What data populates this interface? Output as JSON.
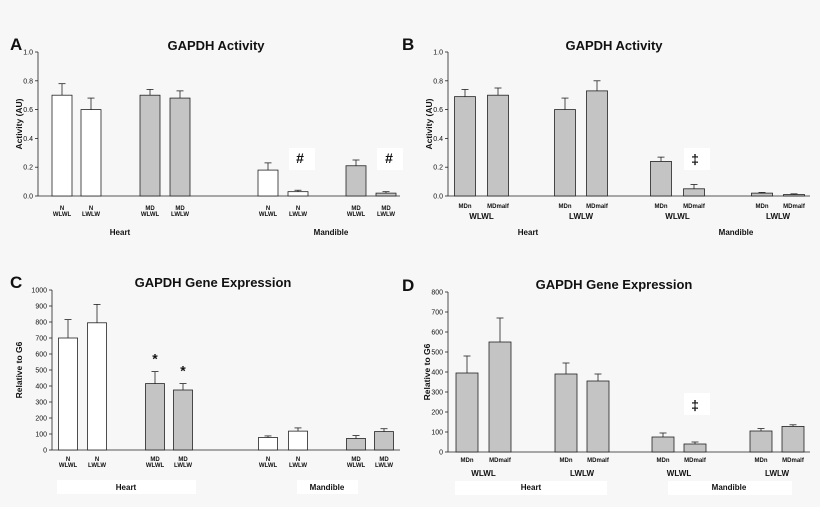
{
  "chart_data": [
    {
      "id": "A",
      "type": "bar",
      "panel_letter": "A",
      "title": "GAPDH Activity",
      "ylabel": "Activity (AU)",
      "ylim": [
        0,
        1.0
      ],
      "yticks": [
        "0.0",
        "0.2",
        "0.4",
        "0.6",
        "0.8",
        "1.0"
      ],
      "bars": [
        {
          "label": [
            "N",
            "WLWL"
          ],
          "value": 0.7,
          "err": 0.08,
          "fill": "white"
        },
        {
          "label": [
            "N",
            "LWLW"
          ],
          "value": 0.6,
          "err": 0.08,
          "fill": "white"
        },
        {
          "label": [
            "MD",
            "WLWL"
          ],
          "value": 0.7,
          "err": 0.04,
          "fill": "gray"
        },
        {
          "label": [
            "MD",
            "LWLW"
          ],
          "value": 0.68,
          "err": 0.05,
          "fill": "gray"
        },
        {
          "label": [
            "N",
            "WLWL"
          ],
          "value": 0.18,
          "err": 0.05,
          "fill": "white"
        },
        {
          "label": [
            "N",
            "LWLW"
          ],
          "value": 0.03,
          "err": 0.01,
          "fill": "white",
          "mark": "#"
        },
        {
          "label": [
            "MD",
            "WLWL"
          ],
          "value": 0.21,
          "err": 0.04,
          "fill": "gray"
        },
        {
          "label": [
            "MD",
            "LWLW"
          ],
          "value": 0.02,
          "err": 0.01,
          "fill": "gray",
          "mark": "#"
        }
      ],
      "groups": [
        {
          "label": "Heart"
        },
        {
          "label": "Mandible"
        }
      ]
    },
    {
      "id": "B",
      "type": "bar",
      "panel_letter": "B",
      "title": "GAPDH Activity",
      "ylabel": "Activity (AU)",
      "ylim": [
        0,
        1.0
      ],
      "yticks": [
        "0.0",
        "0.2",
        "0.4",
        "0.6",
        "0.8",
        "1.0"
      ],
      "bars": [
        {
          "label": [
            "MDn"
          ],
          "value": 0.69,
          "err": 0.05,
          "fill": "gray"
        },
        {
          "label": [
            "MDmalf"
          ],
          "value": 0.7,
          "err": 0.05,
          "fill": "gray"
        },
        {
          "label": [
            "MDn"
          ],
          "value": 0.6,
          "err": 0.08,
          "fill": "gray"
        },
        {
          "label": [
            "MDmalf"
          ],
          "value": 0.73,
          "err": 0.07,
          "fill": "gray"
        },
        {
          "label": [
            "MDn"
          ],
          "value": 0.24,
          "err": 0.03,
          "fill": "gray"
        },
        {
          "label": [
            "MDmalf"
          ],
          "value": 0.05,
          "err": 0.03,
          "fill": "gray",
          "mark": "‡"
        },
        {
          "label": [
            "MDn"
          ],
          "value": 0.02,
          "err": 0.005,
          "fill": "gray"
        },
        {
          "label": [
            "MDmalf"
          ],
          "value": 0.01,
          "err": 0.005,
          "fill": "gray"
        }
      ],
      "sublabels": [
        "WLWL",
        "LWLW",
        "WLWL",
        "LWLW"
      ],
      "groups": [
        {
          "label": "Heart"
        },
        {
          "label": "Mandible"
        }
      ]
    },
    {
      "id": "C",
      "type": "bar",
      "panel_letter": "C",
      "title": "GAPDH Gene Expression",
      "ylabel": "Relative to G6",
      "ylim": [
        0,
        1000
      ],
      "yticks": [
        "0",
        "100",
        "200",
        "300",
        "400",
        "500",
        "600",
        "700",
        "800",
        "900",
        "1000"
      ],
      "bars": [
        {
          "label": [
            "N",
            "WLWL"
          ],
          "value": 700,
          "err": 115,
          "fill": "white"
        },
        {
          "label": [
            "N",
            "LWLW"
          ],
          "value": 795,
          "err": 115,
          "fill": "white"
        },
        {
          "label": [
            "MD",
            "WLWL"
          ],
          "value": 415,
          "err": 75,
          "fill": "gray",
          "mark": "*"
        },
        {
          "label": [
            "MD",
            "LWLW"
          ],
          "value": 375,
          "err": 40,
          "fill": "gray",
          "mark": "*"
        },
        {
          "label": [
            "N",
            "WLWL"
          ],
          "value": 78,
          "err": 10,
          "fill": "white"
        },
        {
          "label": [
            "N",
            "LWLW"
          ],
          "value": 118,
          "err": 20,
          "fill": "white"
        },
        {
          "label": [
            "MD",
            "WLWL"
          ],
          "value": 72,
          "err": 18,
          "fill": "gray"
        },
        {
          "label": [
            "MD",
            "LWLW"
          ],
          "value": 115,
          "err": 18,
          "fill": "gray"
        }
      ],
      "groups": [
        {
          "label": "Heart"
        },
        {
          "label": "Mandible"
        }
      ]
    },
    {
      "id": "D",
      "type": "bar",
      "panel_letter": "D",
      "title": "GAPDH Gene Expression",
      "ylabel": "Relative to G6",
      "ylim": [
        0,
        800
      ],
      "yticks": [
        "0",
        "100",
        "200",
        "300",
        "400",
        "500",
        "600",
        "700",
        "800"
      ],
      "bars": [
        {
          "label": [
            "MDn"
          ],
          "value": 395,
          "err": 85,
          "fill": "gray"
        },
        {
          "label": [
            "MDmalf"
          ],
          "value": 550,
          "err": 120,
          "fill": "gray"
        },
        {
          "label": [
            "MDn"
          ],
          "value": 390,
          "err": 55,
          "fill": "gray"
        },
        {
          "label": [
            "MDmalf"
          ],
          "value": 355,
          "err": 35,
          "fill": "gray"
        },
        {
          "label": [
            "MDn"
          ],
          "value": 75,
          "err": 20,
          "fill": "gray"
        },
        {
          "label": [
            "MDmalf"
          ],
          "value": 40,
          "err": 10,
          "fill": "gray",
          "mark": "‡"
        },
        {
          "label": [
            "MDn"
          ],
          "value": 105,
          "err": 12,
          "fill": "gray"
        },
        {
          "label": [
            "MDmalf"
          ],
          "value": 128,
          "err": 8,
          "fill": "gray"
        }
      ],
      "sublabels": [
        "WLWL",
        "LWLW",
        "WLWL",
        "LWLW"
      ],
      "groups": [
        {
          "label": "Heart"
        },
        {
          "label": "Mandible"
        }
      ]
    }
  ],
  "colors": {
    "bar_white": "#ffffff",
    "bar_gray": "#c4c4c4",
    "stroke": "#222222",
    "background": "#f7f7f7",
    "label_box": "#ffffff"
  }
}
